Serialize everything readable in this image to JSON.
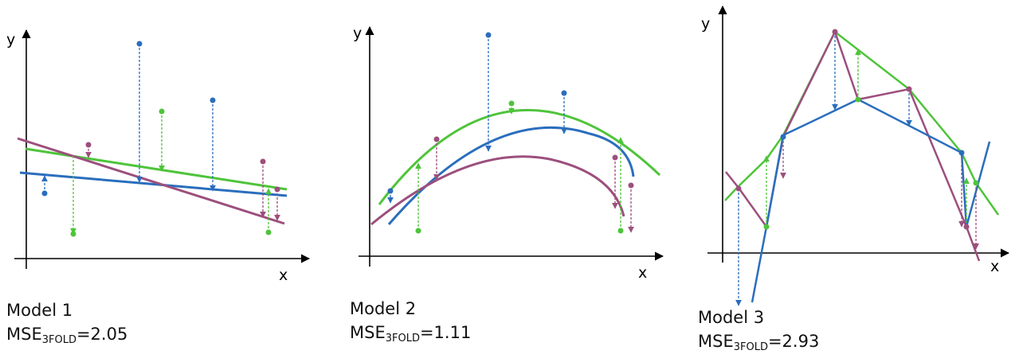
{
  "colors": {
    "blue": "#2a6ebd",
    "green": "#4ec43a",
    "purple": "#9c4f7d",
    "axis": "#000000"
  },
  "panels": [
    {
      "model_label": "Model 1",
      "mse_prefix": "MSE",
      "mse_subscript": "3FOLD",
      "mse_value": "=2.05",
      "x_axis_label": "x",
      "y_axis_label": "y"
    },
    {
      "model_label": "Model 2",
      "mse_prefix": "MSE",
      "mse_subscript": "3FOLD",
      "mse_value": "=1.11",
      "x_axis_label": "x",
      "y_axis_label": "y"
    },
    {
      "model_label": "Model 3",
      "mse_prefix": "MSE",
      "mse_subscript": "3FOLD",
      "mse_value": "=2.93",
      "x_axis_label": "x",
      "y_axis_label": "y"
    }
  ]
}
